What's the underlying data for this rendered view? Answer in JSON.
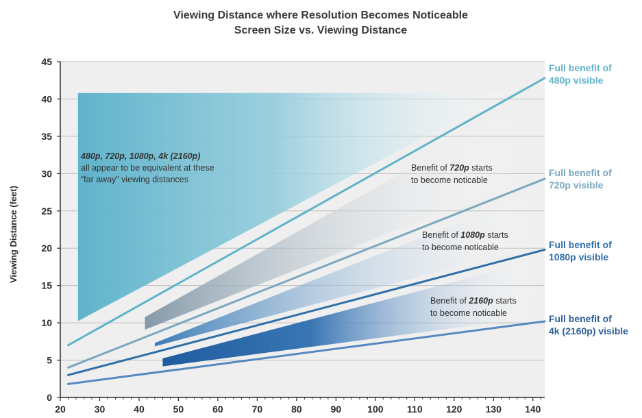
{
  "chart_data": {
    "type": "line",
    "title": "Viewing Distance where Resolution Becomes Noticeable",
    "subtitle": "Screen Size vs. Viewing Distance",
    "xlabel": "",
    "ylabel": "Viewing Distance (feet)",
    "xlim": [
      20,
      143
    ],
    "ylim": [
      0,
      45
    ],
    "x_ticks": [
      "20",
      "30",
      "40",
      "50",
      "60",
      "70",
      "80",
      "90",
      "100",
      "110",
      "120",
      "130",
      "140"
    ],
    "y_ticks": [
      "0",
      "5",
      "10",
      "15",
      "20",
      "25",
      "30",
      "35",
      "40",
      "45"
    ],
    "grid": true,
    "series": [
      {
        "name": "Full benefit of 480p visible",
        "color": "#5fb3cb",
        "x": [
          22,
          143
        ],
        "y": [
          7.0,
          42.8
        ]
      },
      {
        "name": "Full benefit of 720p visible",
        "color": "#7ba7be",
        "x": [
          22,
          143
        ],
        "y": [
          4.0,
          29.3
        ]
      },
      {
        "name": "Full benefit of 1080p visible",
        "color": "#2f6fa8",
        "x": [
          22,
          143
        ],
        "y": [
          3.0,
          19.8
        ]
      },
      {
        "name": "Full benefit of 4k (2160p) visible",
        "color": "#5588c0",
        "x": [
          22,
          143
        ],
        "y": [
          1.8,
          10.2
        ]
      }
    ],
    "annotations": [
      {
        "lines": [
          [
            "480p, 720p, 1080p, 4k (2160p)",
            ""
          ],
          [
            "all appear to be equivalent at these",
            ""
          ],
          [
            "“far away” viewing distances",
            ""
          ]
        ]
      },
      {
        "lines": [
          [
            "Benefit of ",
            "720p",
            " starts"
          ],
          [
            "to become noticable",
            "",
            ""
          ]
        ]
      },
      {
        "lines": [
          [
            "Benefit of ",
            "1080p",
            " starts"
          ],
          [
            "to become noticable",
            "",
            ""
          ]
        ]
      },
      {
        "lines": [
          [
            "Benefit of ",
            "2160p",
            " starts"
          ],
          [
            "to become noticable",
            "",
            ""
          ]
        ]
      }
    ],
    "right_labels": [
      {
        "lines": [
          "Full benefit of",
          "480p visible"
        ],
        "color": "#5fb3cb"
      },
      {
        "lines": [
          "Full benefit of",
          "720p visible"
        ],
        "color": "#7ba7be"
      },
      {
        "lines": [
          "Full benefit of",
          "1080p visible"
        ],
        "color": "#2f6fa8"
      },
      {
        "lines": [
          "Full benefit of",
          "4k (2160p) visible"
        ],
        "color": "#2c5f97"
      }
    ],
    "colors": {
      "plot_background": "#efefef",
      "grid": "#bdbdbd",
      "axis": "#2a2a2a",
      "region_480p": "#5fb3cb",
      "region_720p": "#8a9dab",
      "region_1080p": "#3f7fb8",
      "region_2160p": "#2a66a8"
    }
  }
}
